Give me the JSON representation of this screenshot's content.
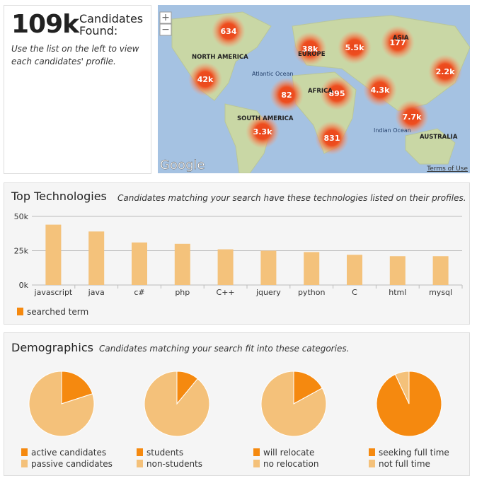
{
  "summary": {
    "count": "109k",
    "label": "Candidates Found:",
    "hint": "Use the list on the left to view each candidates' profile."
  },
  "map": {
    "clusters": [
      "634",
      "38k",
      "5.5k",
      "177",
      "42k",
      "2.2k",
      "82",
      "895",
      "4.3k",
      "7.7k",
      "3.3k",
      "831"
    ],
    "regions": [
      "NORTH AMERICA",
      "EUROPE",
      "ASIA",
      "AFRICA",
      "SOUTH AMERICA",
      "AUSTRALIA",
      "Atlantic Ocean",
      "Indian Ocean"
    ],
    "brand": "Google",
    "terms": "Terms of Use"
  },
  "chart_data": [
    {
      "type": "bar",
      "title": "Top Technologies",
      "subtitle": "Candidates matching your search have these technologies listed on their profiles.",
      "categories": [
        "javascript",
        "java",
        "c#",
        "php",
        "C++",
        "jquery",
        "python",
        "C",
        "html",
        "mysql"
      ],
      "values": [
        44000,
        39000,
        31000,
        30000,
        26000,
        25000,
        24000,
        22000,
        21000,
        21000
      ],
      "color": "#f4c27b",
      "ylim": [
        0,
        50000
      ],
      "yticks": [
        {
          "value": 0,
          "label": "0k"
        },
        {
          "value": 25000,
          "label": "25k"
        },
        {
          "value": 50000,
          "label": "50k"
        }
      ],
      "grid": true,
      "legend": {
        "name": "searched term",
        "color": "#f5890f"
      }
    },
    {
      "type": "pie",
      "title": "Demographics",
      "subtitle": "Candidates matching your search fit into these categories.",
      "categories": [
        "active candidates",
        "passive candidates"
      ],
      "values": [
        20,
        80
      ],
      "colors": [
        "#f5890f",
        "#f4c17a"
      ]
    },
    {
      "type": "pie",
      "categories": [
        "students",
        "non-students"
      ],
      "values": [
        11,
        89
      ],
      "colors": [
        "#f5890f",
        "#f4c17a"
      ]
    },
    {
      "type": "pie",
      "categories": [
        "will relocate",
        "no relocation"
      ],
      "values": [
        17,
        83
      ],
      "colors": [
        "#f5890f",
        "#f4c17a"
      ]
    },
    {
      "type": "pie",
      "categories": [
        "seeking full time",
        "not full time"
      ],
      "values": [
        93,
        7
      ],
      "colors": [
        "#f5890f",
        "#f4c17a"
      ]
    }
  ]
}
